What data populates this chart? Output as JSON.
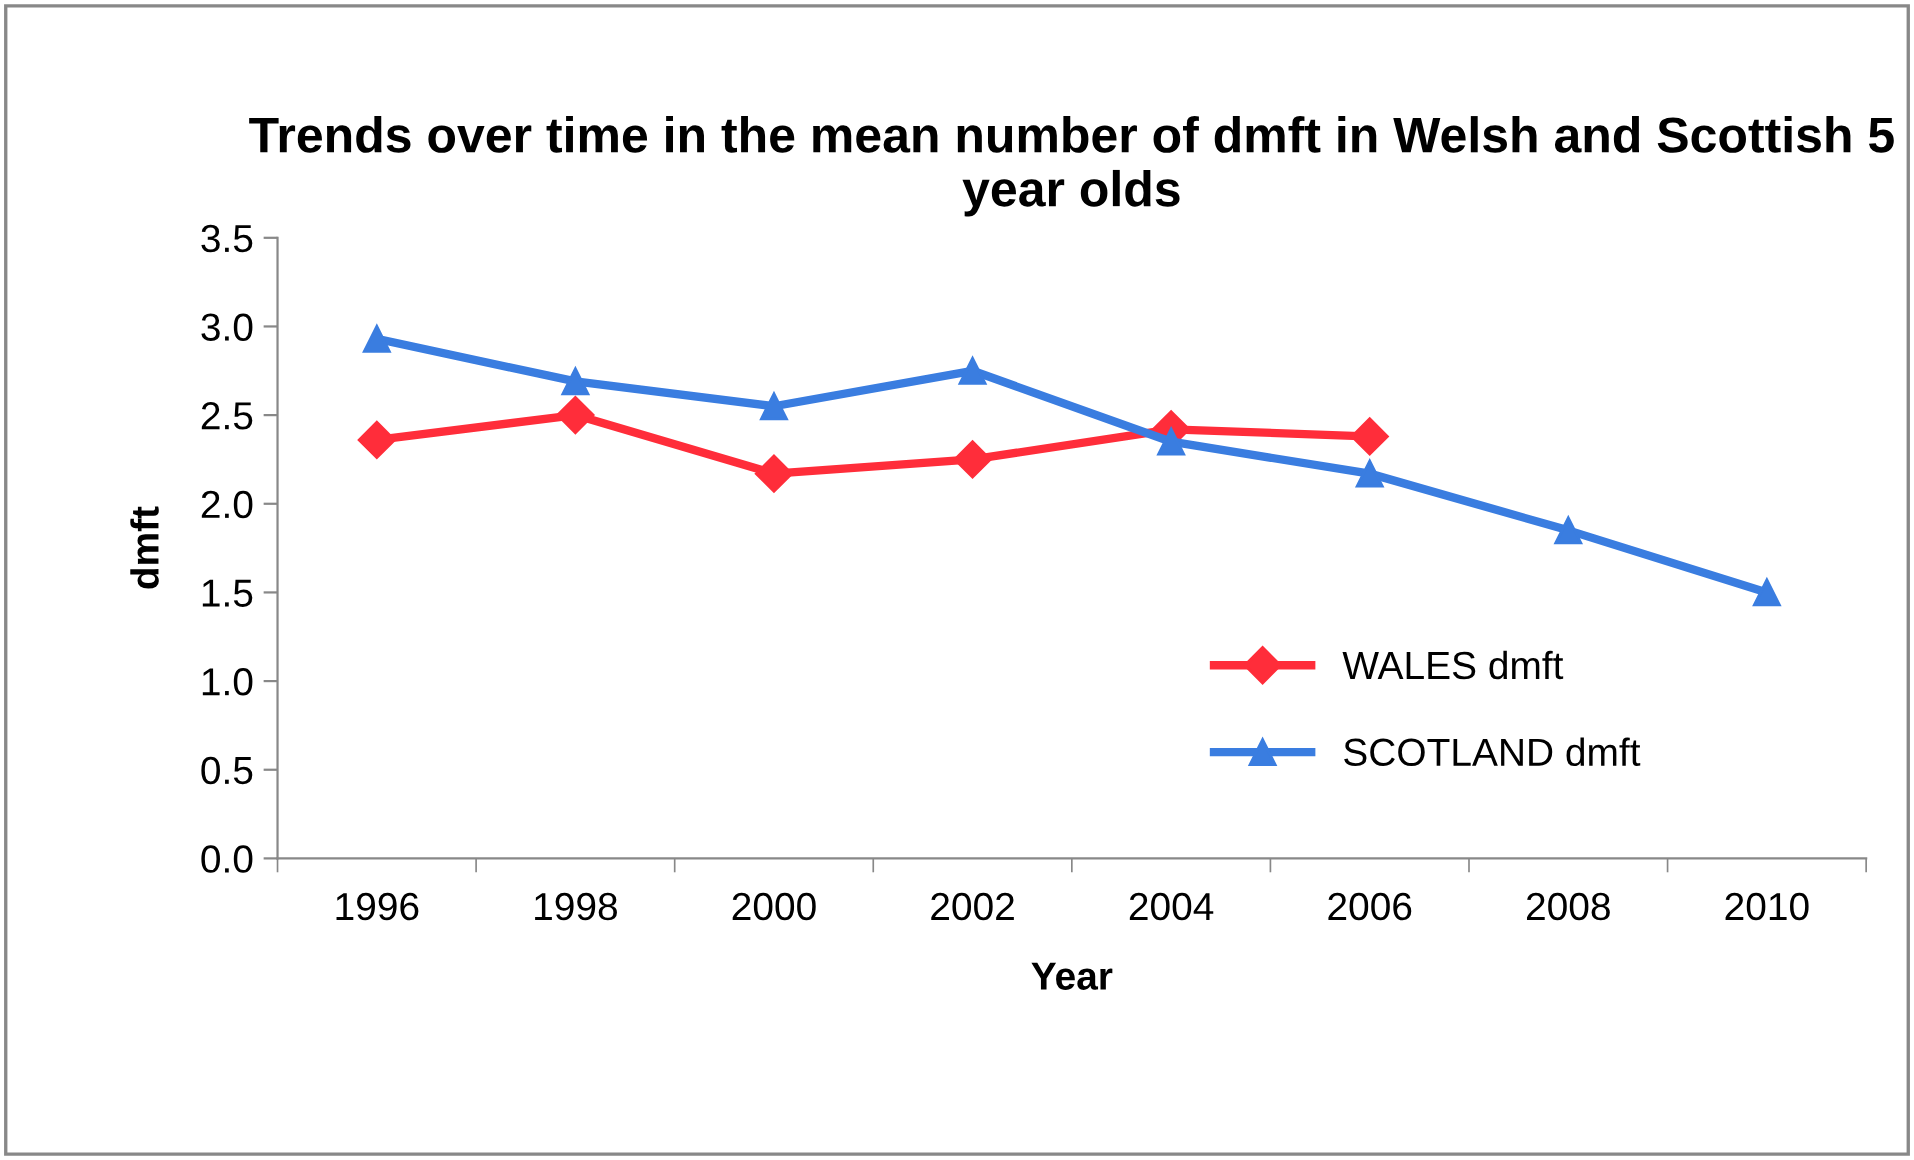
{
  "chart_data": {
    "type": "line",
    "title": "Trends over time in the mean number of dmft in Welsh and Scottish 5 year olds",
    "xlabel": "Year",
    "ylabel": "dmft",
    "categories": [
      "1996",
      "1998",
      "2000",
      "2002",
      "2004",
      "2006",
      "2008",
      "2010"
    ],
    "series": [
      {
        "name": "WALES dmft",
        "color": "#ff2d3a",
        "marker": "diamond",
        "values": [
          2.36,
          2.5,
          2.17,
          2.25,
          2.42,
          2.38,
          null,
          null
        ]
      },
      {
        "name": "SCOTLAND dmft",
        "color": "#3a7de0",
        "marker": "triangle",
        "values": [
          2.93,
          2.69,
          2.55,
          2.75,
          2.35,
          2.17,
          1.85,
          1.5
        ]
      }
    ],
    "ylim": [
      0,
      3.5
    ],
    "yticks": [
      {
        "value": 0,
        "label": "0.0"
      },
      {
        "value": 0.5,
        "label": "0.5"
      },
      {
        "value": 1,
        "label": "1.0"
      },
      {
        "value": 1.5,
        "label": "1.5"
      },
      {
        "value": 2,
        "label": "2.0"
      },
      {
        "value": 2.5,
        "label": "2.5"
      },
      {
        "value": 3,
        "label": "3.0"
      },
      {
        "value": 3.5,
        "label": "3.5"
      }
    ],
    "legend": "bottom right",
    "grid": false,
    "line_style": "solid"
  }
}
